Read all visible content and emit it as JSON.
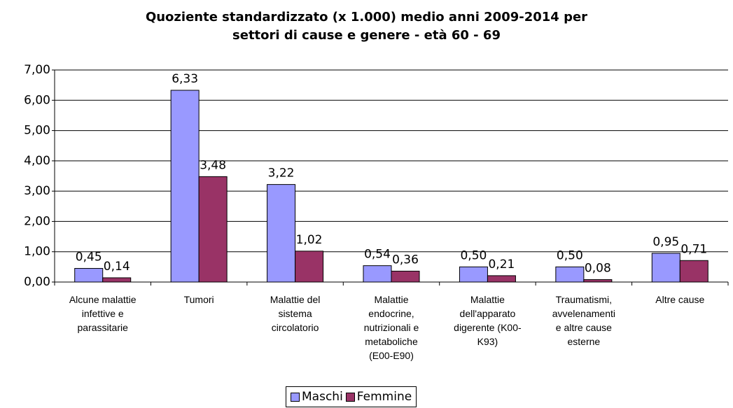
{
  "chart_data": {
    "type": "bar",
    "title": "Quoziente standardizzato (x 1.000) medio anni 2009-2014 per\nsettori di cause e genere - età 60 - 69",
    "categories": [
      "Alcune malattie\ninfettive e\nparassitarie",
      "Tumori",
      "Malattie del\nsistema\ncircolatorio",
      "Malattie\nendocrine,\nnutrizionali e\nmetaboliche\n(E00-E90)",
      "Malattie\ndell'apparato\ndigerente (K00-\nK93)",
      "Traumatismi,\navvelenamenti\ne altre cause\nesterne",
      "Altre cause"
    ],
    "series": [
      {
        "name": "Maschi",
        "color": "#9999ff",
        "values": [
          0.45,
          6.33,
          3.22,
          0.54,
          0.5,
          0.5,
          0.95
        ],
        "value_labels": [
          "0,45",
          "6,33",
          "3,22",
          "0,54",
          "0,50",
          "0,50",
          "0,95"
        ]
      },
      {
        "name": "Femmine",
        "color": "#993366",
        "values": [
          0.14,
          3.48,
          1.02,
          0.36,
          0.21,
          0.08,
          0.71
        ],
        "value_labels": [
          "0,14",
          "3,48",
          "1,02",
          "0,36",
          "0,21",
          "0,08",
          "0,71"
        ]
      }
    ],
    "ylim": [
      0,
      7
    ],
    "yticks": [
      {
        "value": 0,
        "label": "0,00"
      },
      {
        "value": 1,
        "label": "1,00"
      },
      {
        "value": 2,
        "label": "2,00"
      },
      {
        "value": 3,
        "label": "3,00"
      },
      {
        "value": 4,
        "label": "4,00"
      },
      {
        "value": 5,
        "label": "5,00"
      },
      {
        "value": 6,
        "label": "6,00"
      },
      {
        "value": 7,
        "label": "7,00"
      }
    ],
    "grid": true,
    "legend": "bottom"
  }
}
